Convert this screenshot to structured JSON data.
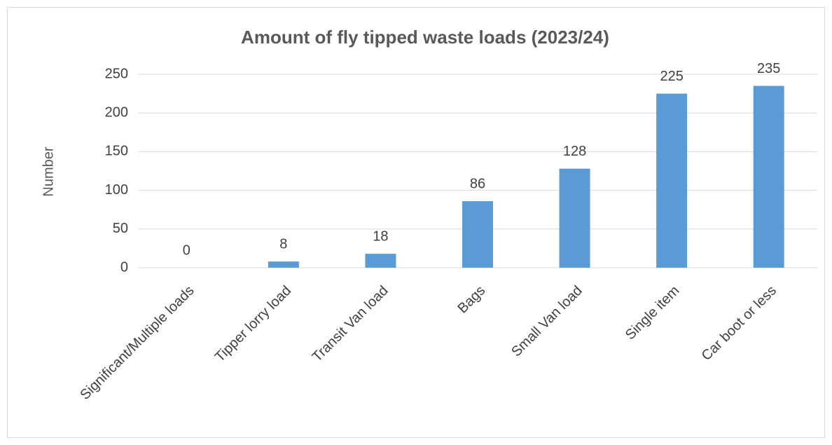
{
  "chart_data": {
    "type": "bar",
    "title": "Amount of fly tipped waste loads (2023/24)",
    "y_label": "Number",
    "categories": [
      "Significant/Multiple loads",
      "Tipper lorry load",
      "Transit Van load",
      "Bags",
      "Small Van load",
      "Single item",
      "Car boot or less"
    ],
    "values": [
      0,
      8,
      18,
      86,
      128,
      225,
      235
    ],
    "color": "#5b9bd5",
    "ylim": [
      0,
      250
    ],
    "yticks": [
      0,
      50,
      100,
      150,
      200,
      250
    ],
    "grid": true
  }
}
